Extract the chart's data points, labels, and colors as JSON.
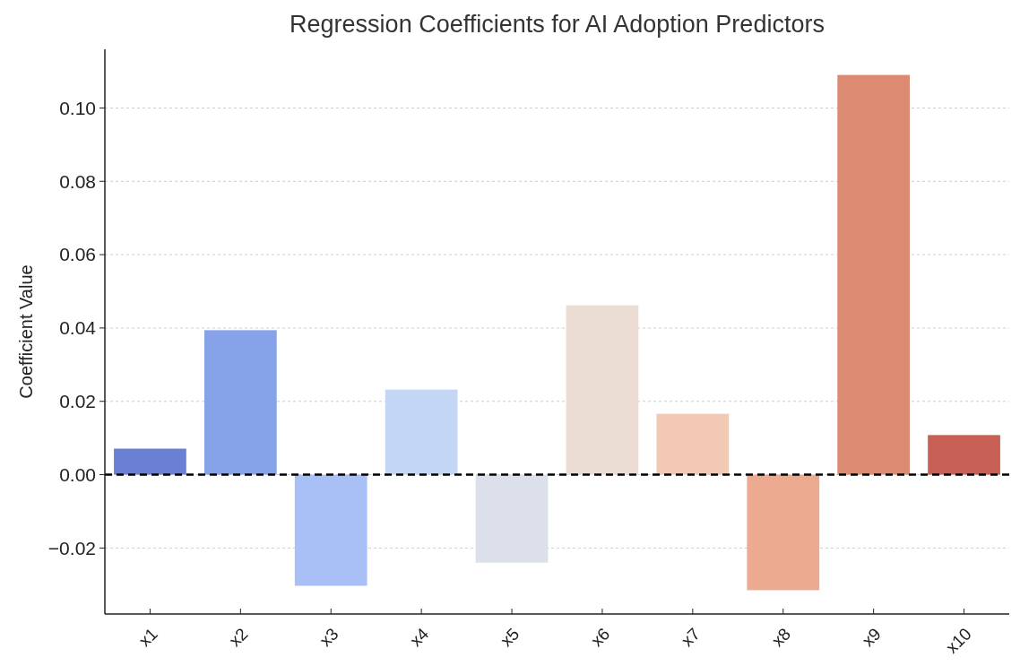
{
  "chart_data": {
    "type": "bar",
    "title": "Regression Coefficients for AI Adoption Predictors",
    "ylabel": "Coefficient Value",
    "categories": [
      "x1",
      "x2",
      "x3",
      "x4",
      "x5",
      "x6",
      "x7",
      "x8",
      "x9",
      "x10"
    ],
    "values": [
      0.0071,
      0.0394,
      -0.0303,
      0.0232,
      -0.024,
      0.0462,
      0.0166,
      -0.0315,
      0.109,
      0.0108
    ],
    "colors": [
      "#6a80d5",
      "#86a3ea",
      "#a8c0f6",
      "#c4d6f5",
      "#dbe0ea",
      "#ebdcd4",
      "#f1c9b5",
      "#ecab90",
      "#dd8a73",
      "#c75f55"
    ],
    "ylim": [
      -0.038,
      0.116
    ],
    "yticks": [
      {
        "value": -0.02,
        "label": "−0.02"
      },
      {
        "value": 0,
        "label": "0.00"
      },
      {
        "value": 0.02,
        "label": "0.02"
      },
      {
        "value": 0.04,
        "label": "0.04"
      },
      {
        "value": 0.06,
        "label": "0.06"
      },
      {
        "value": 0.08,
        "label": "0.08"
      },
      {
        "value": 0.1,
        "label": "0.10"
      }
    ],
    "grid": "y",
    "ref_lines": [
      {
        "axis": "y",
        "value": 0,
        "color": "#000000",
        "line_style": "dashed"
      }
    ]
  }
}
